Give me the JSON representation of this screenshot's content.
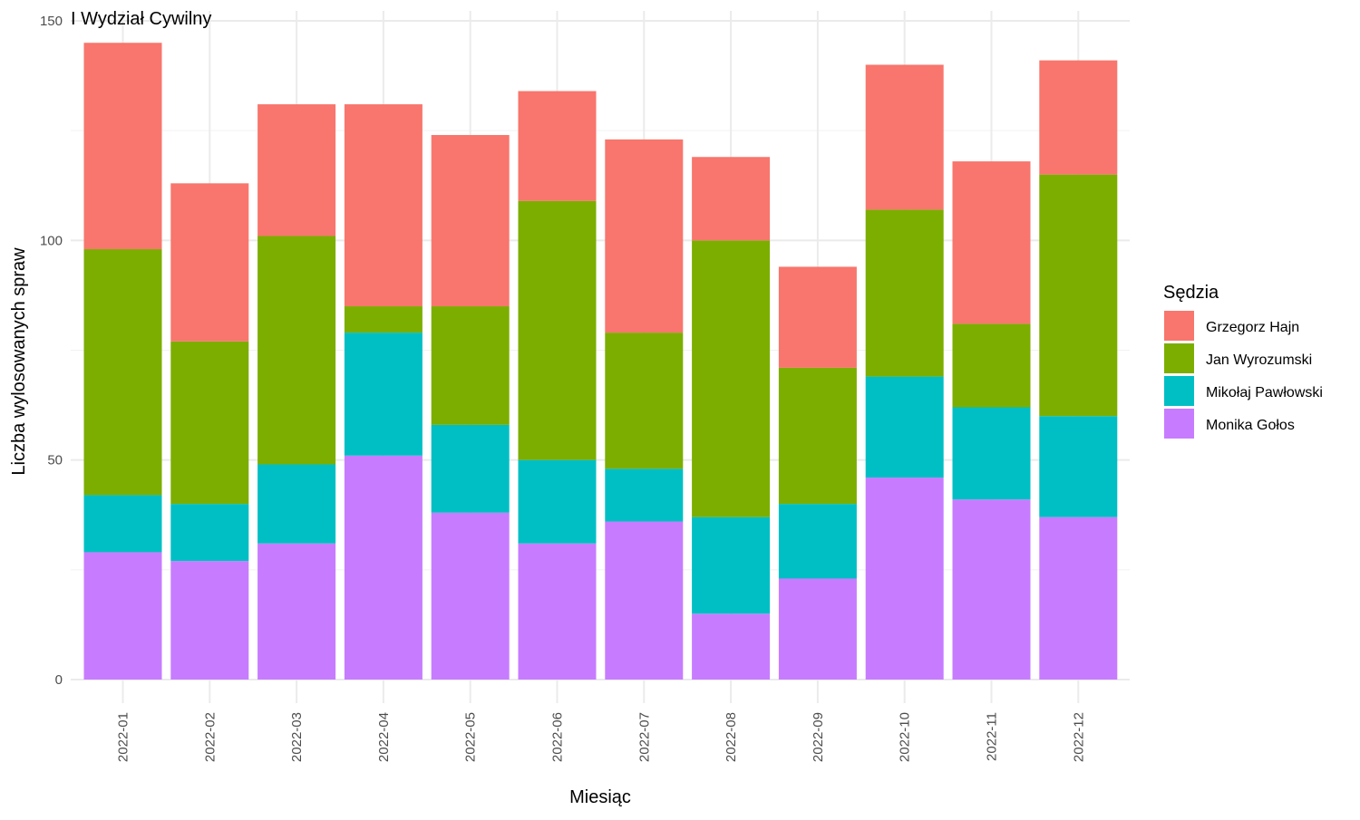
{
  "chart_data": {
    "type": "bar",
    "stacked": true,
    "title": "I Wydział Cywilny",
    "xlabel": "Miesiąc",
    "ylabel": "Liczba wylosowanych spraw",
    "ylim": [
      0,
      150
    ],
    "yticks": [
      0,
      50,
      100,
      150
    ],
    "grid": true,
    "legend_position": "right",
    "legend_title": "Sędzia",
    "categories": [
      "2022-01",
      "2022-02",
      "2022-03",
      "2022-04",
      "2022-05",
      "2022-06",
      "2022-07",
      "2022-08",
      "2022-09",
      "2022-10",
      "2022-11",
      "2022-12"
    ],
    "series": [
      {
        "name": "Grzegorz Hajn",
        "color": "#F8766D",
        "values": [
          47,
          36,
          30,
          46,
          39,
          25,
          44,
          19,
          23,
          33,
          37,
          26
        ]
      },
      {
        "name": "Jan Wyrozumski",
        "color": "#7CAE00",
        "values": [
          56,
          37,
          52,
          6,
          27,
          59,
          31,
          63,
          31,
          38,
          19,
          55
        ]
      },
      {
        "name": "Mikołaj Pawłowski",
        "color": "#00BFC4",
        "values": [
          13,
          13,
          18,
          28,
          20,
          19,
          12,
          22,
          17,
          23,
          21,
          23
        ]
      },
      {
        "name": "Monika Gołos",
        "color": "#C77CFF",
        "values": [
          29,
          27,
          31,
          51,
          38,
          31,
          36,
          15,
          23,
          46,
          41,
          37
        ]
      }
    ],
    "stack_order_bottom_to_top": [
      "Monika Gołos",
      "Mikołaj Pawłowski",
      "Jan Wyrozumski",
      "Grzegorz Hajn"
    ]
  }
}
